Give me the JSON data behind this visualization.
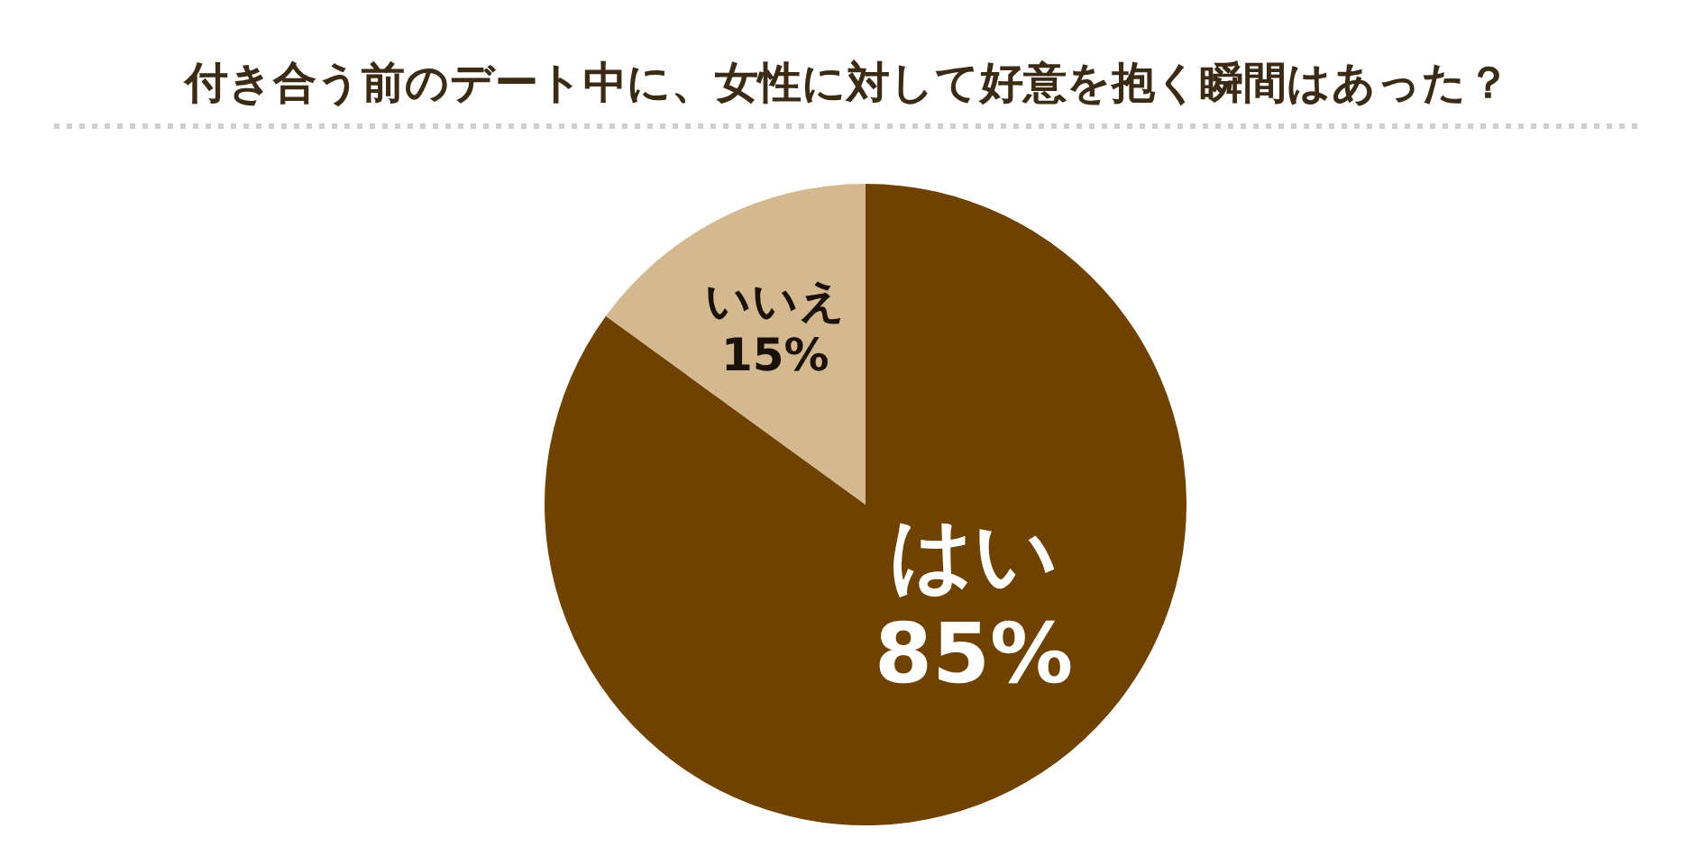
{
  "chart_data": {
    "type": "pie",
    "title": "付き合う前のデート中に、女性に対して好意を抱く瞬間はあった？",
    "categories": [
      "はい",
      "いいえ"
    ],
    "values": [
      85,
      15
    ],
    "colors": [
      "#6f4200",
      "#d4b88f"
    ],
    "value_labels": [
      "85%",
      "15%"
    ]
  }
}
